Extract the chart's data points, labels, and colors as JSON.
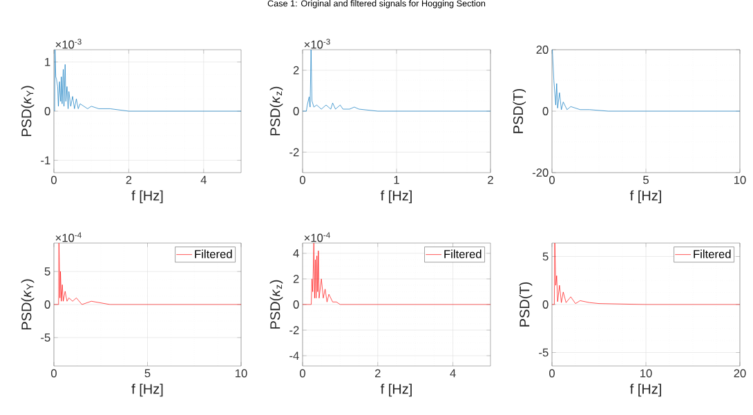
{
  "chart_data": [
    {
      "type": "line",
      "xlabel": "f [Hz]",
      "ylabel": "PSD(*κ*$_{Y}$)",
      "annotations": [
        "×10$^{-3}$"
      ],
      "grid": true,
      "xlim": [
        0,
        5
      ],
      "ylim": [
        -1.25,
        1.25
      ],
      "xticks": [
        0,
        2,
        4
      ],
      "yticks": [
        -1,
        0,
        1
      ],
      "series": [
        {
          "color": "#0072bd",
          "x": [
            0.02,
            0.03,
            0.05,
            0.07,
            0.1,
            0.12,
            0.15,
            0.18,
            0.2,
            0.22,
            0.25,
            0.27,
            0.3,
            0.32,
            0.35,
            0.38,
            0.4,
            0.45,
            0.5,
            0.55,
            0.6,
            0.65,
            0.7,
            0.8,
            0.9,
            1.0,
            1.2,
            1.5,
            2,
            5
          ],
          "values": [
            0,
            1.25,
            0.7,
            0.65,
            0.5,
            0.1,
            0.6,
            0.2,
            0.7,
            0.15,
            0.85,
            0.1,
            0.95,
            0.2,
            0.5,
            0.05,
            0.4,
            0.1,
            0.3,
            0.05,
            0.25,
            0.05,
            0.15,
            0.1,
            0.05,
            0.1,
            0.05,
            0.05,
            0,
            0
          ]
        }
      ]
    },
    {
      "type": "line",
      "title": "Case 1: Original and filtered signals for Hogging Section",
      "xlabel": "f [Hz]",
      "ylabel": "PSD(*κ*$_{z}$)",
      "annotations": [
        "×10$^{-3}$"
      ],
      "grid": true,
      "xlim": [
        0,
        2
      ],
      "ylim": [
        -3,
        3
      ],
      "xticks": [
        0,
        1,
        2
      ],
      "yticks": [
        -2,
        0,
        2
      ],
      "series": [
        {
          "color": "#0072bd",
          "x": [
            0,
            0.04,
            0.05,
            0.07,
            0.08,
            0.09,
            0.1,
            0.12,
            0.15,
            0.2,
            0.25,
            0.3,
            0.32,
            0.35,
            0.4,
            0.43,
            0.5,
            0.55,
            0.6,
            0.8,
            1,
            2
          ],
          "values": [
            0,
            0,
            0.3,
            0.7,
            0.2,
            3,
            0.5,
            0.2,
            0.3,
            0.1,
            0.3,
            0.1,
            0.4,
            0.1,
            0.3,
            0.1,
            0.1,
            0.2,
            0.1,
            0,
            0,
            0
          ]
        }
      ]
    },
    {
      "type": "line",
      "xlabel": "f [Hz]",
      "ylabel": "PSD(T)",
      "grid": true,
      "xlim": [
        0,
        10
      ],
      "ylim": [
        -20,
        20
      ],
      "xticks": [
        0,
        5,
        10
      ],
      "yticks": [
        -20,
        0,
        20
      ],
      "series": [
        {
          "color": "#0072bd",
          "x": [
            0.02,
            0.1,
            0.2,
            0.25,
            0.3,
            0.4,
            0.5,
            0.6,
            0.8,
            1,
            1.5,
            2,
            3,
            5,
            10
          ],
          "values": [
            20,
            10,
            2,
            9,
            1,
            6,
            0.5,
            3,
            0.5,
            1.5,
            0.5,
            0.5,
            0,
            0,
            0
          ]
        }
      ]
    },
    {
      "type": "line",
      "xlabel": "f [Hz]",
      "ylabel": "PSD(*κ*$_{Y}$)",
      "annotations": [
        "×10$^{-4}$"
      ],
      "grid": true,
      "legend": "top right",
      "xlim": [
        0,
        10
      ],
      "ylim": [
        -9.3,
        9.3
      ],
      "xticks": [
        0,
        5,
        10
      ],
      "yticks": [
        -5,
        0,
        5
      ],
      "series": [
        {
          "name": "Filtered",
          "color": "#ff0000",
          "x": [
            0,
            0.25,
            0.27,
            0.3,
            0.32,
            0.35,
            0.4,
            0.45,
            0.5,
            0.6,
            0.7,
            0.8,
            1,
            1.2,
            1.5,
            2,
            3,
            10
          ],
          "values": [
            0,
            0,
            9.3,
            5,
            1,
            5,
            0.5,
            3,
            0.5,
            2,
            0.5,
            1,
            0.5,
            1,
            0,
            0.5,
            0,
            0
          ]
        }
      ]
    },
    {
      "type": "line",
      "xlabel": "f [Hz]",
      "ylabel": "PSD(*κ*$_{z}$)",
      "annotations": [
        "×10$^{-4}$"
      ],
      "grid": true,
      "legend": "top right",
      "xlim": [
        0,
        5
      ],
      "ylim": [
        -4.8,
        4.8
      ],
      "xticks": [
        0,
        2,
        4
      ],
      "yticks": [
        -4,
        -2,
        0,
        2,
        4
      ],
      "series": [
        {
          "name": "Filtered",
          "color": "#ff0000",
          "x": [
            0,
            0.23,
            0.25,
            0.27,
            0.3,
            0.32,
            0.34,
            0.36,
            0.38,
            0.4,
            0.42,
            0.44,
            0.5,
            0.55,
            0.6,
            0.65,
            0.7,
            0.8,
            0.9,
            1,
            5
          ],
          "values": [
            0,
            0,
            2,
            1,
            4.8,
            0.5,
            3.5,
            0.5,
            3.8,
            1,
            4.2,
            0.5,
            2,
            0.5,
            1.2,
            0.2,
            0.8,
            0.2,
            0.2,
            0,
            0
          ]
        }
      ]
    },
    {
      "type": "line",
      "xlabel": "f [Hz]",
      "ylabel": "PSD(T)",
      "grid": true,
      "legend": "top right",
      "xlim": [
        0,
        20
      ],
      "ylim": [
        -6.4,
        6.4
      ],
      "xticks": [
        0,
        10,
        20
      ],
      "yticks": [
        -5,
        0,
        5
      ],
      "series": [
        {
          "name": "Filtered",
          "color": "#ff0000",
          "x": [
            0,
            0.25,
            0.3,
            0.4,
            0.5,
            0.6,
            0.8,
            1,
            1.2,
            1.5,
            2,
            2.5,
            3,
            4,
            5,
            10,
            20
          ],
          "values": [
            0,
            0,
            6.4,
            2,
            3,
            0.3,
            2,
            0.2,
            1.3,
            0.2,
            0.8,
            0.1,
            0.4,
            0.2,
            0.1,
            0,
            0
          ]
        }
      ]
    }
  ]
}
